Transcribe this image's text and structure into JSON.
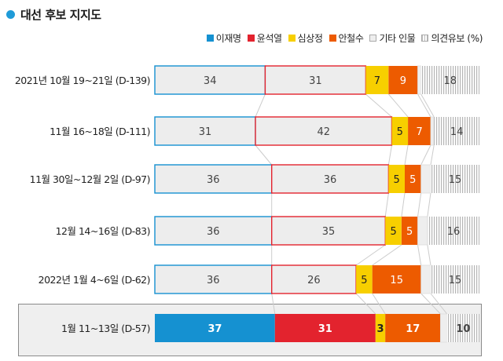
{
  "title": "대선 후보 지지도",
  "legend": [
    {
      "name": "이재명",
      "icon": "square-blue"
    },
    {
      "name": "윤석열",
      "icon": "square-red"
    },
    {
      "name": "심상정",
      "icon": "square-yellow"
    },
    {
      "name": "안철수",
      "icon": "square-orange"
    },
    {
      "name": "기타 인물",
      "icon": "square-light-gray"
    },
    {
      "name": "의견유보 (%)",
      "icon": "square-gray-hatched"
    }
  ],
  "colors": {
    "lee": "#1591d1",
    "yoon": "#e3232e",
    "sim": "#f7cf00",
    "ahn": "#ed5b00",
    "etc_fill": "#eeeeee",
    "outline_fill": "#ededed",
    "text_dark": "#444444"
  },
  "chart_data": {
    "type": "bar",
    "stacked": true,
    "orientation": "horizontal",
    "title": "대선 후보 지지도",
    "categories": [
      "2021년 10월 19~21일 (D-139)",
      "11월 16~18일 (D-111)",
      "11월 30일~12월 2일 (D-97)",
      "12월 14~16일 (D-83)",
      "2022년 1월 4~6일 (D-62)",
      "1월 11~13일 (D-57)"
    ],
    "series": [
      {
        "name": "이재명",
        "values": [
          34,
          31,
          36,
          36,
          36,
          37
        ]
      },
      {
        "name": "윤석열",
        "values": [
          31,
          42,
          36,
          35,
          26,
          31
        ]
      },
      {
        "name": "심상정",
        "values": [
          7,
          5,
          5,
          5,
          5,
          3
        ]
      },
      {
        "name": "안철수",
        "values": [
          9,
          7,
          5,
          5,
          15,
          17
        ]
      },
      {
        "name": "기타 인물",
        "values": [
          1,
          1,
          3,
          3,
          3,
          2
        ]
      },
      {
        "name": "의견유보 (%)",
        "values": [
          18,
          14,
          15,
          16,
          15,
          10
        ]
      }
    ],
    "xlim": [
      0,
      100
    ],
    "highlighted_category": "1월 11~13일 (D-57)",
    "legend_position": "top-right",
    "grid": false
  }
}
